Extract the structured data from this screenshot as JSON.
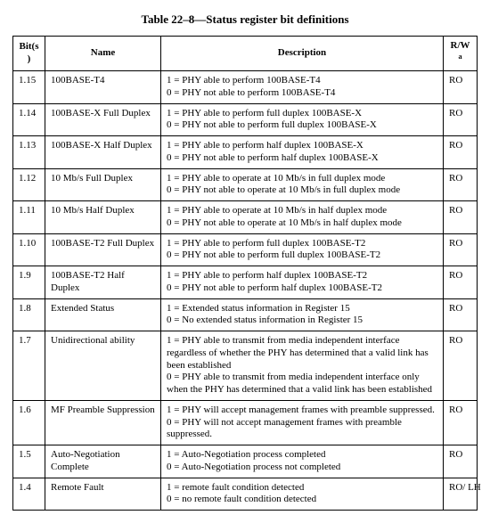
{
  "title": "Table 22–8—Status register bit definitions",
  "columns": {
    "bits": "Bit(s)",
    "name": "Name",
    "description": "Description",
    "rw": "R/W",
    "rw_sup": "a"
  },
  "rows": [
    {
      "bits": "1.15",
      "name": "100BASE-T4",
      "desc": [
        "1 = PHY able to perform 100BASE-T4",
        "0 = PHY not able to perform 100BASE-T4"
      ],
      "rw": "RO"
    },
    {
      "bits": "1.14",
      "name": "100BASE-X Full Duplex",
      "desc": [
        "1 = PHY able to perform full duplex 100BASE-X",
        "0 = PHY not able to perform full duplex 100BASE-X"
      ],
      "rw": "RO"
    },
    {
      "bits": "1.13",
      "name": "100BASE-X Half Duplex",
      "desc": [
        "1 = PHY able to perform half duplex 100BASE-X",
        "0 = PHY not able to perform half duplex 100BASE-X"
      ],
      "rw": "RO"
    },
    {
      "bits": "1.12",
      "name": "10 Mb/s Full Duplex",
      "desc": [
        "1 = PHY able to operate at 10 Mb/s in full duplex mode",
        "0 = PHY not able to operate at 10 Mb/s in full duplex mode"
      ],
      "rw": "RO"
    },
    {
      "bits": "1.11",
      "name": "10 Mb/s Half Duplex",
      "desc": [
        "1 = PHY able to operate at 10 Mb/s in half duplex mode",
        "0 = PHY not able to operate at 10 Mb/s in half duplex mode"
      ],
      "rw": "RO"
    },
    {
      "bits": "1.10",
      "name": "100BASE-T2 Full Duplex",
      "desc": [
        "1 = PHY able to perform full duplex 100BASE-T2",
        "0 = PHY not able to perform full duplex 100BASE-T2"
      ],
      "rw": "RO"
    },
    {
      "bits": "1.9",
      "name": "100BASE-T2 Half Duplex",
      "desc": [
        "1 = PHY able to perform half duplex 100BASE-T2",
        "0 = PHY not able to perform half duplex 100BASE-T2"
      ],
      "rw": "RO"
    },
    {
      "bits": "1.8",
      "name": "Extended Status",
      "desc": [
        "1 = Extended status information in Register 15",
        "0 = No extended status information in Register 15"
      ],
      "rw": "RO"
    },
    {
      "bits": "1.7",
      "name": "Unidirectional ability",
      "desc": [
        "1 = PHY able to transmit from media independent interface regardless of whether the PHY has determined that a valid link has been established",
        "0 = PHY able to transmit from media independent interface only when the PHY has determined that a valid link has been established"
      ],
      "rw": "RO"
    },
    {
      "bits": "1.6",
      "name": "MF Preamble Suppression",
      "desc": [
        "1 = PHY will accept management frames with preamble suppressed.",
        "0 = PHY will not accept management frames with preamble suppressed."
      ],
      "rw": "RO"
    },
    {
      "bits": "1.5",
      "name": "Auto-Negotiation Complete",
      "desc": [
        "1 = Auto-Negotiation process completed",
        "0 = Auto-Negotiation process not completed"
      ],
      "rw": "RO"
    },
    {
      "bits": "1.4",
      "name": "Remote Fault",
      "desc": [
        "1 = remote fault condition detected",
        "0 = no remote fault condition detected"
      ],
      "rw": "RO/ LH"
    }
  ]
}
